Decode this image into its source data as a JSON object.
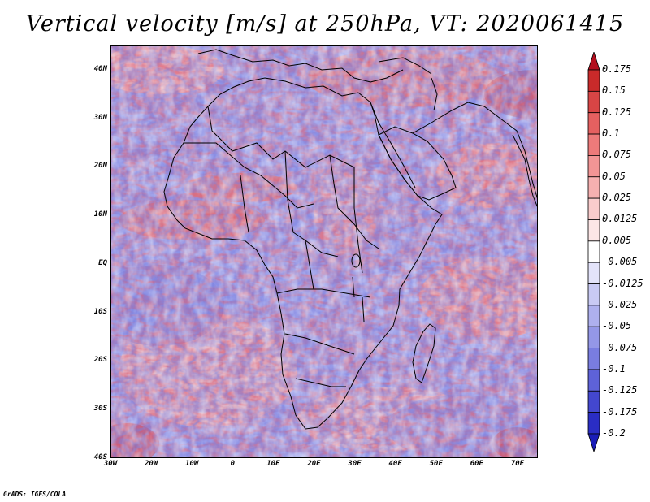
{
  "title": "Vertical velocity [m/s] at 250hPa, VT: 2020061415",
  "map": {
    "lat_labels": [
      "40N",
      "30N",
      "20N",
      "10N",
      "EQ",
      "10S",
      "20S",
      "30S",
      "40S"
    ],
    "lon_labels": [
      "30W",
      "20W",
      "10W",
      "0",
      "10E",
      "20E",
      "30E",
      "40E",
      "50E",
      "60E",
      "70E"
    ],
    "lon_range": [
      -30,
      75
    ],
    "lat_range": [
      -40,
      45
    ],
    "field_colors": {
      "strong_up": "#b2182b",
      "up": "#ef8a8a",
      "weak_up": "#f6c1c1",
      "neutral": "#ffffff",
      "weak_down": "#c6c8f2",
      "down": "#8a8ee8",
      "strong_down": "#3b3fc4"
    }
  },
  "colorbar": {
    "levels": [
      "0.175",
      "0.15",
      "0.125",
      "0.1",
      "0.075",
      "0.05",
      "0.025",
      "0.0125",
      "0.005",
      "-0.005",
      "-0.0125",
      "-0.025",
      "-0.05",
      "-0.075",
      "-0.1",
      "-0.125",
      "-0.175",
      "-0.2"
    ],
    "colors": [
      "#b30f1e",
      "#c92a2a",
      "#d84545",
      "#e56060",
      "#ed7a7a",
      "#f29595",
      "#f6b0b0",
      "#f9cccc",
      "#fce6e6",
      "#ffffff",
      "#e3e3fa",
      "#c9caf4",
      "#aeb0ee",
      "#9497e7",
      "#797de0",
      "#5e62d8",
      "#4347cf",
      "#2a2dc4",
      "#1a1db8"
    ]
  },
  "credit": "GrADS: IGES/COLA"
}
